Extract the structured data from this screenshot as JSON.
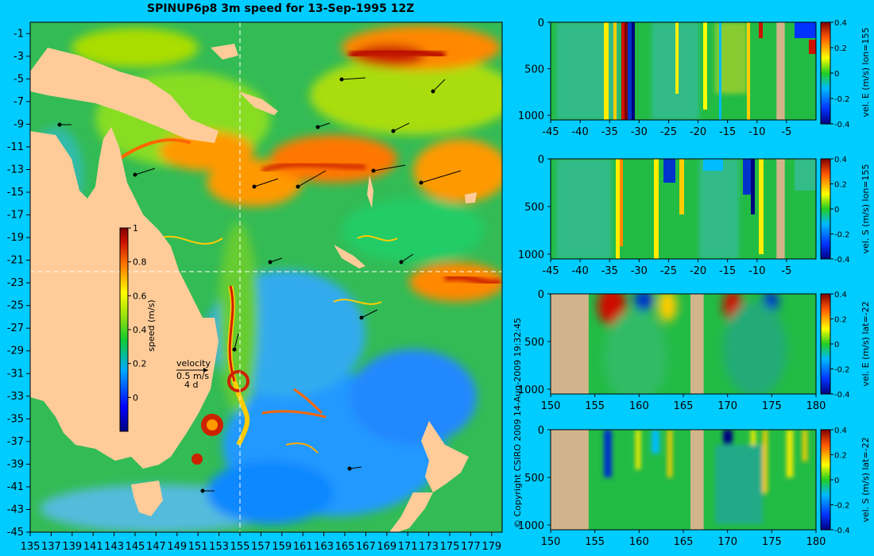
{
  "title": "SPINUP6p8 3m speed for 13-Sep-1995 12Z",
  "copyright": "© Copyright CSIRO 2009  14-Aug-2009 19:32:45",
  "colors": {
    "background": "#00ccff",
    "land": "#ffcc99",
    "land_sections": "#d2b48c",
    "guide_line": "#ffffff"
  },
  "map": {
    "lon_ticks": [
      "135",
      "137",
      "139",
      "141",
      "143",
      "145",
      "147",
      "149",
      "151",
      "153",
      "155",
      "157",
      "159",
      "161",
      "163",
      "165",
      "167",
      "169",
      "171",
      "173",
      "175",
      "177",
      "179"
    ],
    "lat_ticks": [
      "-1",
      "-3",
      "-5",
      "-7",
      "-9",
      "-11",
      "-13",
      "-15",
      "-17",
      "-19",
      "-21",
      "-23",
      "-25",
      "-27",
      "-29",
      "-31",
      "-33",
      "-35",
      "-37",
      "-39",
      "-41",
      "-43",
      "-45"
    ],
    "lon_range": [
      135,
      180
    ],
    "lat_range": [
      -45,
      0
    ],
    "section_lon": 155,
    "section_lat": -22,
    "speed_colorbar": {
      "label": "speed (m/s)",
      "range": [
        -0.2,
        1
      ],
      "ticks": [
        "1",
        "0.8",
        "0.6",
        "0.4",
        "0.2",
        "0"
      ]
    },
    "velocity_key": {
      "title": "velocity",
      "scale": "0.5 m/s",
      "duration": "4 d"
    }
  },
  "chart_data": [
    {
      "type": "heatmap",
      "title": "SPINUP6p8 3m speed for 13-Sep-1995 12Z",
      "xlabel": "",
      "ylabel": "",
      "x_range": [
        135,
        180
      ],
      "y_range": [
        -45,
        0
      ],
      "colorbar_label": "speed (m/s)",
      "colorbar_range": [
        -0.2,
        1
      ],
      "colorbar_ticks": [
        0,
        0.2,
        0.4,
        0.6,
        0.8,
        1
      ],
      "grid": false
    },
    {
      "type": "heatmap",
      "panel": "top",
      "colorbar_label": "vel. E (m/s) lon=155",
      "x_range": [
        -45,
        0
      ],
      "y_range": [
        0,
        1050
      ],
      "x_ticks": [
        "-45",
        "-40",
        "-35",
        "-30",
        "-25",
        "-20",
        "-15",
        "-10",
        "-5"
      ],
      "y_ticks": [
        "0",
        "500",
        "1000"
      ],
      "colorbar_range": [
        -0.4,
        0.4
      ],
      "colorbar_ticks": [
        "0.4",
        "0.2",
        "0",
        "-0.2",
        "-0.4"
      ],
      "land_columns": [
        [
          -6.7,
          -5.3
        ]
      ]
    },
    {
      "type": "heatmap",
      "panel": "second",
      "colorbar_label": "vel. S (m/s) lon=155",
      "x_range": [
        -45,
        0
      ],
      "y_range": [
        0,
        1050
      ],
      "x_ticks": [
        "-45",
        "-40",
        "-35",
        "-30",
        "-25",
        "-20",
        "-15",
        "-10",
        "-5"
      ],
      "y_ticks": [
        "0",
        "500",
        "1000"
      ],
      "colorbar_range": [
        -0.4,
        0.4
      ],
      "colorbar_ticks": [
        "0.4",
        "0.2",
        "0",
        "-0.2",
        "-0.4"
      ],
      "land_columns": [
        [
          -6.7,
          -5.3
        ]
      ]
    },
    {
      "type": "heatmap",
      "panel": "third",
      "colorbar_label": "vel. E (m/s) lat=-22",
      "x_range": [
        150,
        180
      ],
      "y_range": [
        0,
        1050
      ],
      "x_ticks": [
        "150",
        "155",
        "160",
        "165",
        "170",
        "175",
        "180"
      ],
      "y_ticks": [
        "0",
        "500",
        "1000"
      ],
      "colorbar_range": [
        -0.4,
        0.4
      ],
      "colorbar_ticks": [
        "0.4",
        "0.2",
        "0",
        "-0.2",
        "-0.4"
      ],
      "land_columns": [
        [
          150,
          154.3
        ],
        [
          165.8,
          167.3
        ]
      ]
    },
    {
      "type": "heatmap",
      "panel": "bottom",
      "colorbar_label": "vel. S (m/s) lat=-22",
      "x_range": [
        150,
        180
      ],
      "y_range": [
        0,
        1050
      ],
      "x_ticks": [
        "150",
        "155",
        "160",
        "165",
        "170",
        "175",
        "180"
      ],
      "y_ticks": [
        "0",
        "500",
        "1000"
      ],
      "colorbar_range": [
        -0.4,
        0.4
      ],
      "colorbar_ticks": [
        "0.4",
        "0.2",
        "0",
        "-0.2",
        "-0.4"
      ],
      "land_columns": [
        [
          150,
          154.3
        ],
        [
          165.8,
          167.3
        ]
      ]
    }
  ]
}
